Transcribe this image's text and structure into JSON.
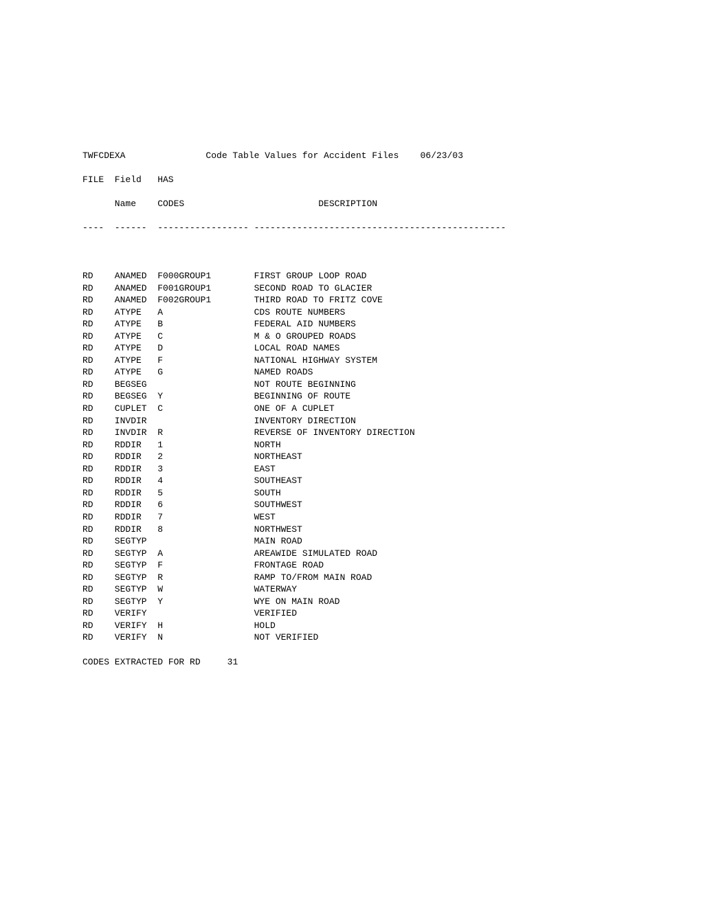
{
  "report": {
    "program": "TWFCDEXA",
    "title": "Code Table Values for Accident Files",
    "date": "06/23/03",
    "header": {
      "file": "FILE",
      "field": "Field",
      "has": "HAS",
      "name": "Name",
      "codes": "CODES",
      "description": "DESCRIPTION",
      "dash_file": "----",
      "dash_field": "------",
      "dash_codes": "-----------------",
      "dash_desc": "-----------------------------------------------"
    },
    "rows": [
      {
        "file": "RD",
        "field": "ANAMED",
        "code": "F000GROUP1",
        "desc": "FIRST GROUP LOOP ROAD"
      },
      {
        "file": "RD",
        "field": "ANAMED",
        "code": "F001GROUP1",
        "desc": "SECOND ROAD TO GLACIER"
      },
      {
        "file": "RD",
        "field": "ANAMED",
        "code": "F002GROUP1",
        "desc": "THIRD ROAD TO FRITZ COVE"
      },
      {
        "file": "RD",
        "field": "ATYPE",
        "code": "A",
        "desc": "CDS ROUTE NUMBERS"
      },
      {
        "file": "RD",
        "field": "ATYPE",
        "code": "B",
        "desc": "FEDERAL AID NUMBERS"
      },
      {
        "file": "RD",
        "field": "ATYPE",
        "code": "C",
        "desc": "M & O GROUPED ROADS"
      },
      {
        "file": "RD",
        "field": "ATYPE",
        "code": "D",
        "desc": "LOCAL ROAD NAMES"
      },
      {
        "file": "RD",
        "field": "ATYPE",
        "code": "F",
        "desc": "NATIONAL HIGHWAY SYSTEM"
      },
      {
        "file": "RD",
        "field": "ATYPE",
        "code": "G",
        "desc": "NAMED ROADS"
      },
      {
        "file": "RD",
        "field": "BEGSEG",
        "code": "",
        "desc": "NOT ROUTE BEGINNING"
      },
      {
        "file": "RD",
        "field": "BEGSEG",
        "code": "Y",
        "desc": "BEGINNING OF ROUTE"
      },
      {
        "file": "RD",
        "field": "CUPLET",
        "code": "C",
        "desc": "ONE OF A CUPLET"
      },
      {
        "file": "RD",
        "field": "INVDIR",
        "code": "",
        "desc": "INVENTORY DIRECTION"
      },
      {
        "file": "RD",
        "field": "INVDIR",
        "code": "R",
        "desc": "REVERSE OF INVENTORY DIRECTION"
      },
      {
        "file": "RD",
        "field": "RDDIR",
        "code": "1",
        "desc": "NORTH"
      },
      {
        "file": "RD",
        "field": "RDDIR",
        "code": "2",
        "desc": "NORTHEAST"
      },
      {
        "file": "RD",
        "field": "RDDIR",
        "code": "3",
        "desc": "EAST"
      },
      {
        "file": "RD",
        "field": "RDDIR",
        "code": "4",
        "desc": "SOUTHEAST"
      },
      {
        "file": "RD",
        "field": "RDDIR",
        "code": "5",
        "desc": "SOUTH"
      },
      {
        "file": "RD",
        "field": "RDDIR",
        "code": "6",
        "desc": "SOUTHWEST"
      },
      {
        "file": "RD",
        "field": "RDDIR",
        "code": "7",
        "desc": "WEST"
      },
      {
        "file": "RD",
        "field": "RDDIR",
        "code": "8",
        "desc": "NORTHWEST"
      },
      {
        "file": "RD",
        "field": "SEGTYP",
        "code": "",
        "desc": "MAIN ROAD"
      },
      {
        "file": "RD",
        "field": "SEGTYP",
        "code": "A",
        "desc": "AREAWIDE SIMULATED ROAD"
      },
      {
        "file": "RD",
        "field": "SEGTYP",
        "code": "F",
        "desc": "FRONTAGE ROAD"
      },
      {
        "file": "RD",
        "field": "SEGTYP",
        "code": "R",
        "desc": "RAMP TO/FROM MAIN ROAD"
      },
      {
        "file": "RD",
        "field": "SEGTYP",
        "code": "W",
        "desc": "WATERWAY"
      },
      {
        "file": "RD",
        "field": "SEGTYP",
        "code": "Y",
        "desc": "WYE ON MAIN ROAD"
      },
      {
        "file": "RD",
        "field": "VERIFY",
        "code": "",
        "desc": "VERIFIED"
      },
      {
        "file": "RD",
        "field": "VERIFY",
        "code": "H",
        "desc": "HOLD"
      },
      {
        "file": "RD",
        "field": "VERIFY",
        "code": "N",
        "desc": "NOT VERIFIED"
      }
    ],
    "footer": {
      "label": "CODES EXTRACTED FOR RD",
      "count": "31"
    }
  }
}
